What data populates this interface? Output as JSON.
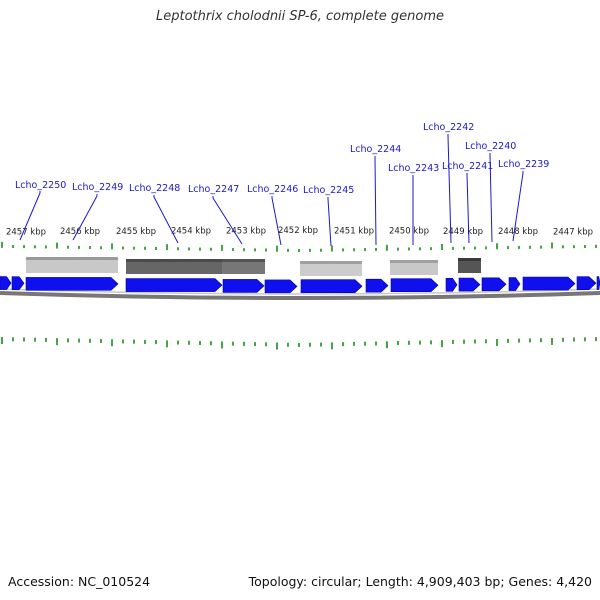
{
  "title": "Leptothrix cholodnii SP-6, complete genome",
  "footer": {
    "accession": "Accession: NC_010524",
    "summary": "Topology: circular; Length: 4,909,403 bp; Genes: 4,420"
  },
  "colors": {
    "gene": "#1010ee",
    "label": "#1a1acc",
    "tick": "#1a8a1a",
    "backbone": "#888888"
  },
  "kbp_labels": [
    "2457 kbp",
    "2456 kbp",
    "2455 kbp",
    "2454 kbp",
    "2453 kbp",
    "2452 kbp",
    "2451 kbp",
    "2450 kbp",
    "2449 kbp",
    "2448 kbp",
    "2447 kbp"
  ],
  "gene_labels": [
    "Lcho_2250",
    "Lcho_2249",
    "Lcho_2248",
    "Lcho_2247",
    "Lcho_2246",
    "Lcho_2245",
    "Lcho_2244",
    "Lcho_2243",
    "Lcho_2242",
    "Lcho_2241",
    "Lcho_2240",
    "Lcho_2239"
  ]
}
